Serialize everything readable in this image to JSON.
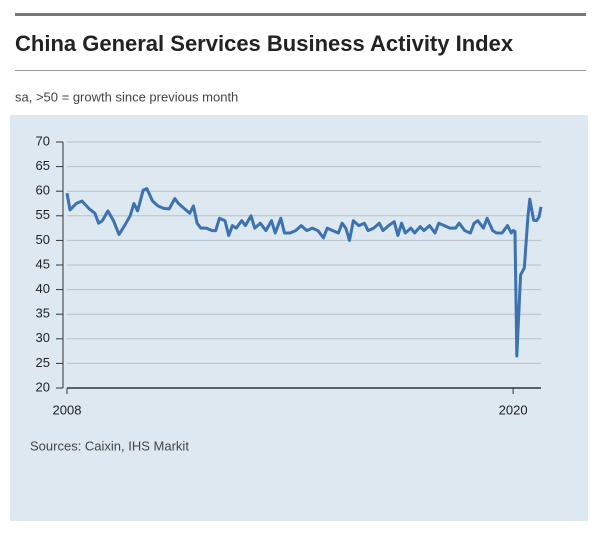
{
  "chart_data": {
    "type": "line",
    "title": "China General Services Business Activity Index",
    "subtitle": "sa, >50 = growth since previous month",
    "source": "Sources: Caixin, IHS Markit",
    "x": [
      2008.0,
      2008.08,
      2008.25,
      2008.4,
      2008.6,
      2008.75,
      2008.85,
      2008.95,
      2009.1,
      2009.25,
      2009.4,
      2009.55,
      2009.7,
      2009.8,
      2009.9,
      2010.05,
      2010.15,
      2010.3,
      2010.45,
      2010.6,
      2010.75,
      2010.9,
      2011.0,
      2011.15,
      2011.3,
      2011.4,
      2011.5,
      2011.6,
      2011.75,
      2011.9,
      2012.0,
      2012.1,
      2012.25,
      2012.35,
      2012.45,
      2012.55,
      2012.7,
      2012.8,
      2012.95,
      2013.05,
      2013.2,
      2013.35,
      2013.5,
      2013.6,
      2013.75,
      2013.85,
      2014.0,
      2014.15,
      2014.3,
      2014.45,
      2014.6,
      2014.75,
      2014.9,
      2015.0,
      2015.15,
      2015.3,
      2015.4,
      2015.5,
      2015.6,
      2015.7,
      2015.85,
      2016.0,
      2016.1,
      2016.25,
      2016.4,
      2016.5,
      2016.65,
      2016.8,
      2016.9,
      2017.0,
      2017.1,
      2017.25,
      2017.35,
      2017.5,
      2017.6,
      2017.75,
      2017.9,
      2018.0,
      2018.15,
      2018.3,
      2018.45,
      2018.55,
      2018.7,
      2018.85,
      2018.95,
      2019.05,
      2019.2,
      2019.3,
      2019.45,
      2019.55,
      2019.7,
      2019.85,
      2019.95,
      2020.0,
      2020.05,
      2020.1,
      2020.2,
      2020.3,
      2020.4,
      2020.45,
      2020.55,
      2020.63,
      2020.7,
      2020.75
    ],
    "values": [
      59.6,
      56.2,
      57.5,
      58,
      56.4,
      55.5,
      53.5,
      54,
      56,
      54,
      51.2,
      53,
      55,
      57.5,
      56,
      60.2,
      60.5,
      58,
      57,
      56.5,
      56.4,
      58.5,
      57.5,
      56.5,
      55.5,
      57,
      53.5,
      52.5,
      52.5,
      52,
      52,
      54.5,
      54,
      51,
      53,
      52.5,
      54,
      53,
      55,
      52.5,
      53.5,
      52,
      54,
      51.5,
      54.5,
      51.5,
      51.5,
      52,
      53,
      52,
      52.5,
      52,
      50.5,
      52.5,
      52,
      51.5,
      53.5,
      52.5,
      50,
      54,
      53,
      53.5,
      52,
      52.5,
      53.5,
      52,
      53,
      53.8,
      51,
      53.5,
      51.5,
      52.5,
      51.5,
      52.8,
      52,
      53,
      51.5,
      53.5,
      53,
      52.5,
      52.5,
      53.5,
      52,
      51.5,
      53.5,
      54,
      52.5,
      54.5,
      52,
      51.5,
      51.5,
      53,
      51.5,
      52,
      51.8,
      26.5,
      43,
      44.4,
      55,
      58.4,
      54.1,
      54,
      54.8,
      56.8
    ],
    "color": "#3d72b0",
    "xlim": [
      2008,
      2020.75
    ],
    "xticks": [
      2008,
      2020
    ],
    "ylim": [
      20,
      70
    ],
    "yticks": [
      20,
      25,
      30,
      35,
      40,
      45,
      50,
      55,
      60,
      65,
      70
    ],
    "grid": true
  }
}
